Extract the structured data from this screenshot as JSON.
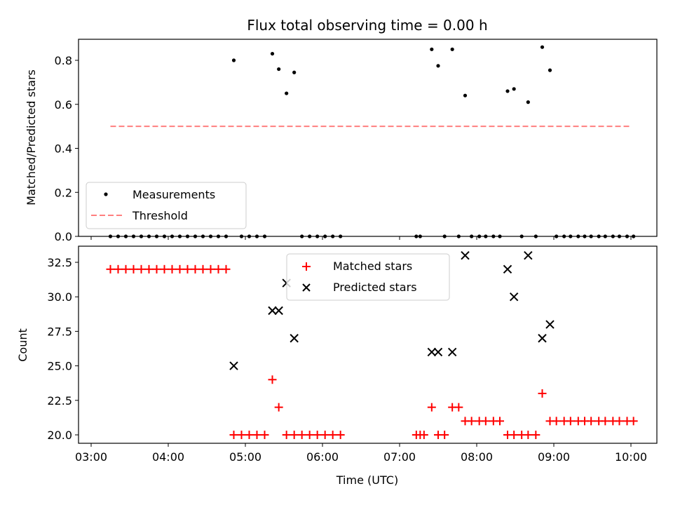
{
  "title": "Flux total observing time = 0.00 h",
  "chart_data": [
    {
      "type": "scatter",
      "panel": "top",
      "ylabel": "Matched/Predicted stars",
      "xlabel": "",
      "xlim": [
        "03:00",
        "10:00"
      ],
      "ylim": [
        0.0,
        0.9
      ],
      "x_ticks": [
        "03:00",
        "04:00",
        "05:00",
        "06:00",
        "07:00",
        "08:00",
        "09:00",
        "10:00"
      ],
      "y_ticks": [
        "0.0",
        "0.2",
        "0.4",
        "0.6",
        "0.8"
      ],
      "legend_position": "lower-left",
      "legend": [
        {
          "label": "Measurements",
          "marker": "dot",
          "color": "#000000"
        },
        {
          "label": "Threshold",
          "marker": "dashed-line",
          "color": "#ff7f7f"
        }
      ],
      "threshold": {
        "name": "Threshold",
        "y": 0.5,
        "x_start": "03:15",
        "x_end": "10:00",
        "color": "#ff7f7f"
      },
      "series": [
        {
          "name": "Measurements",
          "color": "#000000",
          "points": [
            [
              "03:15",
              0.0
            ],
            [
              "03:21",
              0.0
            ],
            [
              "03:27",
              0.0
            ],
            [
              "03:33",
              0.0
            ],
            [
              "03:39",
              0.0
            ],
            [
              "03:45",
              0.0
            ],
            [
              "03:51",
              0.0
            ],
            [
              "03:57",
              0.0
            ],
            [
              "04:03",
              0.0
            ],
            [
              "04:09",
              0.0
            ],
            [
              "04:15",
              0.0
            ],
            [
              "04:21",
              0.0
            ],
            [
              "04:27",
              0.0
            ],
            [
              "04:33",
              0.0
            ],
            [
              "04:39",
              0.0
            ],
            [
              "04:45",
              0.0
            ],
            [
              "04:51",
              0.8
            ],
            [
              "04:57",
              0.0
            ],
            [
              "05:03",
              0.0
            ],
            [
              "05:09",
              0.0
            ],
            [
              "05:15",
              0.0
            ],
            [
              "05:21",
              0.83
            ],
            [
              "05:26",
              0.76
            ],
            [
              "05:32",
              0.65
            ],
            [
              "05:38",
              0.745
            ],
            [
              "05:44",
              0.0
            ],
            [
              "05:50",
              0.0
            ],
            [
              "05:56",
              0.0
            ],
            [
              "06:02",
              0.0
            ],
            [
              "06:08",
              0.0
            ],
            [
              "06:14",
              0.0
            ],
            [
              "07:13",
              0.0
            ],
            [
              "07:16",
              0.0
            ],
            [
              "07:25",
              0.85
            ],
            [
              "07:30",
              0.775
            ],
            [
              "07:35",
              0.0
            ],
            [
              "07:41",
              0.85
            ],
            [
              "07:46",
              0.0
            ],
            [
              "07:51",
              0.64
            ],
            [
              "07:56",
              0.0
            ],
            [
              "08:02",
              0.0
            ],
            [
              "08:07",
              0.0
            ],
            [
              "08:13",
              0.0
            ],
            [
              "08:18",
              0.0
            ],
            [
              "08:24",
              0.66
            ],
            [
              "08:29",
              0.67
            ],
            [
              "08:35",
              0.0
            ],
            [
              "08:40",
              0.61
            ],
            [
              "08:46",
              0.0
            ],
            [
              "08:51",
              0.86
            ],
            [
              "08:57",
              0.755
            ],
            [
              "09:02",
              0.0
            ],
            [
              "09:08",
              0.0
            ],
            [
              "09:13",
              0.0
            ],
            [
              "09:19",
              0.0
            ],
            [
              "09:24",
              0.0
            ],
            [
              "09:29",
              0.0
            ],
            [
              "09:35",
              0.0
            ],
            [
              "09:40",
              0.0
            ],
            [
              "09:46",
              0.0
            ],
            [
              "09:51",
              0.0
            ],
            [
              "09:57",
              0.0
            ],
            [
              "10:02",
              0.0
            ]
          ]
        }
      ]
    },
    {
      "type": "scatter",
      "panel": "bottom",
      "xlabel": "Time (UTC)",
      "ylabel": "Count",
      "xlim": [
        "03:00",
        "10:00"
      ],
      "ylim": [
        19.4,
        33.9
      ],
      "x_ticks": [
        "03:00",
        "04:00",
        "05:00",
        "06:00",
        "07:00",
        "08:00",
        "09:00",
        "10:00"
      ],
      "y_ticks": [
        "20.0",
        "22.5",
        "25.0",
        "27.5",
        "30.0",
        "32.5"
      ],
      "legend_position": "upper-center",
      "legend": [
        {
          "label": "Matched stars",
          "marker": "plus",
          "color": "#ff0000"
        },
        {
          "label": "Predicted stars",
          "marker": "x",
          "color": "#000000"
        }
      ],
      "series": [
        {
          "name": "Matched stars",
          "color": "#ff0000",
          "points": [
            [
              "03:15",
              32
            ],
            [
              "03:21",
              32
            ],
            [
              "03:27",
              32
            ],
            [
              "03:33",
              32
            ],
            [
              "03:39",
              32
            ],
            [
              "03:45",
              32
            ],
            [
              "03:51",
              32
            ],
            [
              "03:57",
              32
            ],
            [
              "04:03",
              32
            ],
            [
              "04:09",
              32
            ],
            [
              "04:15",
              32
            ],
            [
              "04:21",
              32
            ],
            [
              "04:27",
              32
            ],
            [
              "04:33",
              32
            ],
            [
              "04:39",
              32
            ],
            [
              "04:45",
              32
            ],
            [
              "04:51",
              20
            ],
            [
              "04:57",
              20
            ],
            [
              "05:03",
              20
            ],
            [
              "05:09",
              20
            ],
            [
              "05:15",
              20
            ],
            [
              "05:21",
              24
            ],
            [
              "05:26",
              22
            ],
            [
              "05:32",
              20
            ],
            [
              "05:38",
              20
            ],
            [
              "05:44",
              20
            ],
            [
              "05:50",
              20
            ],
            [
              "05:56",
              20
            ],
            [
              "06:02",
              20
            ],
            [
              "06:08",
              20
            ],
            [
              "06:14",
              20
            ],
            [
              "07:13",
              20
            ],
            [
              "07:16",
              20
            ],
            [
              "07:19",
              20
            ],
            [
              "07:25",
              22
            ],
            [
              "07:30",
              20
            ],
            [
              "07:35",
              20
            ],
            [
              "07:41",
              22
            ],
            [
              "07:46",
              22
            ],
            [
              "07:51",
              21
            ],
            [
              "07:56",
              21
            ],
            [
              "08:02",
              21
            ],
            [
              "08:07",
              21
            ],
            [
              "08:13",
              21
            ],
            [
              "08:18",
              21
            ],
            [
              "08:24",
              20
            ],
            [
              "08:29",
              20
            ],
            [
              "08:35",
              20
            ],
            [
              "08:40",
              20
            ],
            [
              "08:46",
              20
            ],
            [
              "08:51",
              23
            ],
            [
              "08:57",
              21
            ],
            [
              "09:02",
              21
            ],
            [
              "09:08",
              21
            ],
            [
              "09:13",
              21
            ],
            [
              "09:19",
              21
            ],
            [
              "09:24",
              21
            ],
            [
              "09:29",
              21
            ],
            [
              "09:35",
              21
            ],
            [
              "09:40",
              21
            ],
            [
              "09:46",
              21
            ],
            [
              "09:51",
              21
            ],
            [
              "09:57",
              21
            ],
            [
              "10:02",
              21
            ]
          ]
        },
        {
          "name": "Predicted stars",
          "color": "#000000",
          "points": [
            [
              "04:51",
              25
            ],
            [
              "05:21",
              29
            ],
            [
              "05:26",
              29
            ],
            [
              "05:32",
              31
            ],
            [
              "05:38",
              27
            ],
            [
              "07:25",
              26
            ],
            [
              "07:30",
              26
            ],
            [
              "07:41",
              26
            ],
            [
              "07:51",
              33
            ],
            [
              "08:24",
              32
            ],
            [
              "08:29",
              30
            ],
            [
              "08:40",
              33
            ],
            [
              "08:51",
              27
            ],
            [
              "08:57",
              28
            ]
          ]
        }
      ]
    }
  ]
}
